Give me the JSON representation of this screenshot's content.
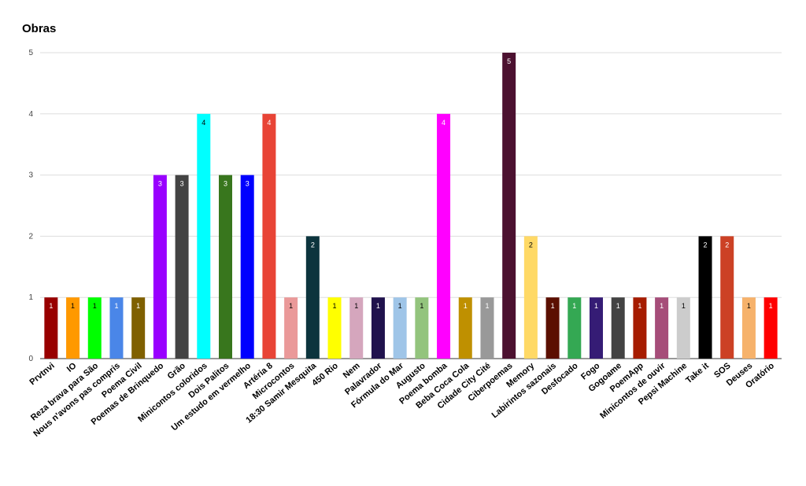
{
  "chart_data": {
    "type": "bar",
    "title": "Obras",
    "xlabel": "",
    "ylabel": "",
    "ylim": [
      0,
      5
    ],
    "yticks": [
      0,
      1,
      2,
      3,
      4,
      5
    ],
    "grid": true,
    "legend": "none",
    "categories": [
      "Prvtnvi",
      "IO",
      "Reza brava para São",
      "Nous n'avons pas compris",
      "Poema Civil",
      "Poemas de Brinquedo",
      "Grão",
      "Minicontos coloridos",
      "Dois Palitos",
      "Um estudo em vermelho",
      "Artéria 8",
      "Microcontos",
      "18:30 Samir Mesquita",
      "450 Rio",
      "Nem",
      "Palavrador",
      "Fórmula do Mar",
      "Augusto",
      "Poema bomba",
      "Beba Coca Cola",
      "Cidade City Cité",
      "Ciberpoemas",
      "Memory",
      "Labirintos sazonais",
      "Desfocado",
      "Fogo",
      "Gogoame",
      "PoemApp",
      "Minicontos de ouvir",
      "Pepsi Machine",
      "Take it",
      "SOS",
      "Deuses",
      "Oratório"
    ],
    "values": [
      1,
      1,
      1,
      1,
      1,
      3,
      3,
      4,
      3,
      3,
      4,
      1,
      2,
      1,
      1,
      1,
      1,
      1,
      4,
      1,
      1,
      5,
      2,
      1,
      1,
      1,
      1,
      1,
      1,
      1,
      2,
      2,
      1,
      1
    ],
    "colors": [
      "#980000",
      "#ff9900",
      "#00ff00",
      "#4a86e8",
      "#7f6000",
      "#9900ff",
      "#434343",
      "#00ffff",
      "#38761d",
      "#0000ff",
      "#e84436",
      "#ea9999",
      "#0c343d",
      "#ffff00",
      "#d5a6bd",
      "#20124d",
      "#9fc5e8",
      "#93c47d",
      "#ff00ff",
      "#bf9000",
      "#999999",
      "#4c1130",
      "#ffd966",
      "#5b0f00",
      "#34a853",
      "#351c75",
      "#434343",
      "#a61c00",
      "#a64d79",
      "#cccccc",
      "#000000",
      "#cc4125",
      "#f6b26b",
      "#ff0000"
    ],
    "label_colors": [
      "#ffffff",
      "#000000",
      "#000000",
      "#ffffff",
      "#ffffff",
      "#ffffff",
      "#ffffff",
      "#000000",
      "#ffffff",
      "#ffffff",
      "#ffffff",
      "#000000",
      "#ffffff",
      "#000000",
      "#000000",
      "#ffffff",
      "#000000",
      "#000000",
      "#ffffff",
      "#ffffff",
      "#ffffff",
      "#ffffff",
      "#000000",
      "#ffffff",
      "#ffffff",
      "#ffffff",
      "#ffffff",
      "#ffffff",
      "#ffffff",
      "#000000",
      "#ffffff",
      "#ffffff",
      "#000000",
      "#ffffff"
    ]
  }
}
